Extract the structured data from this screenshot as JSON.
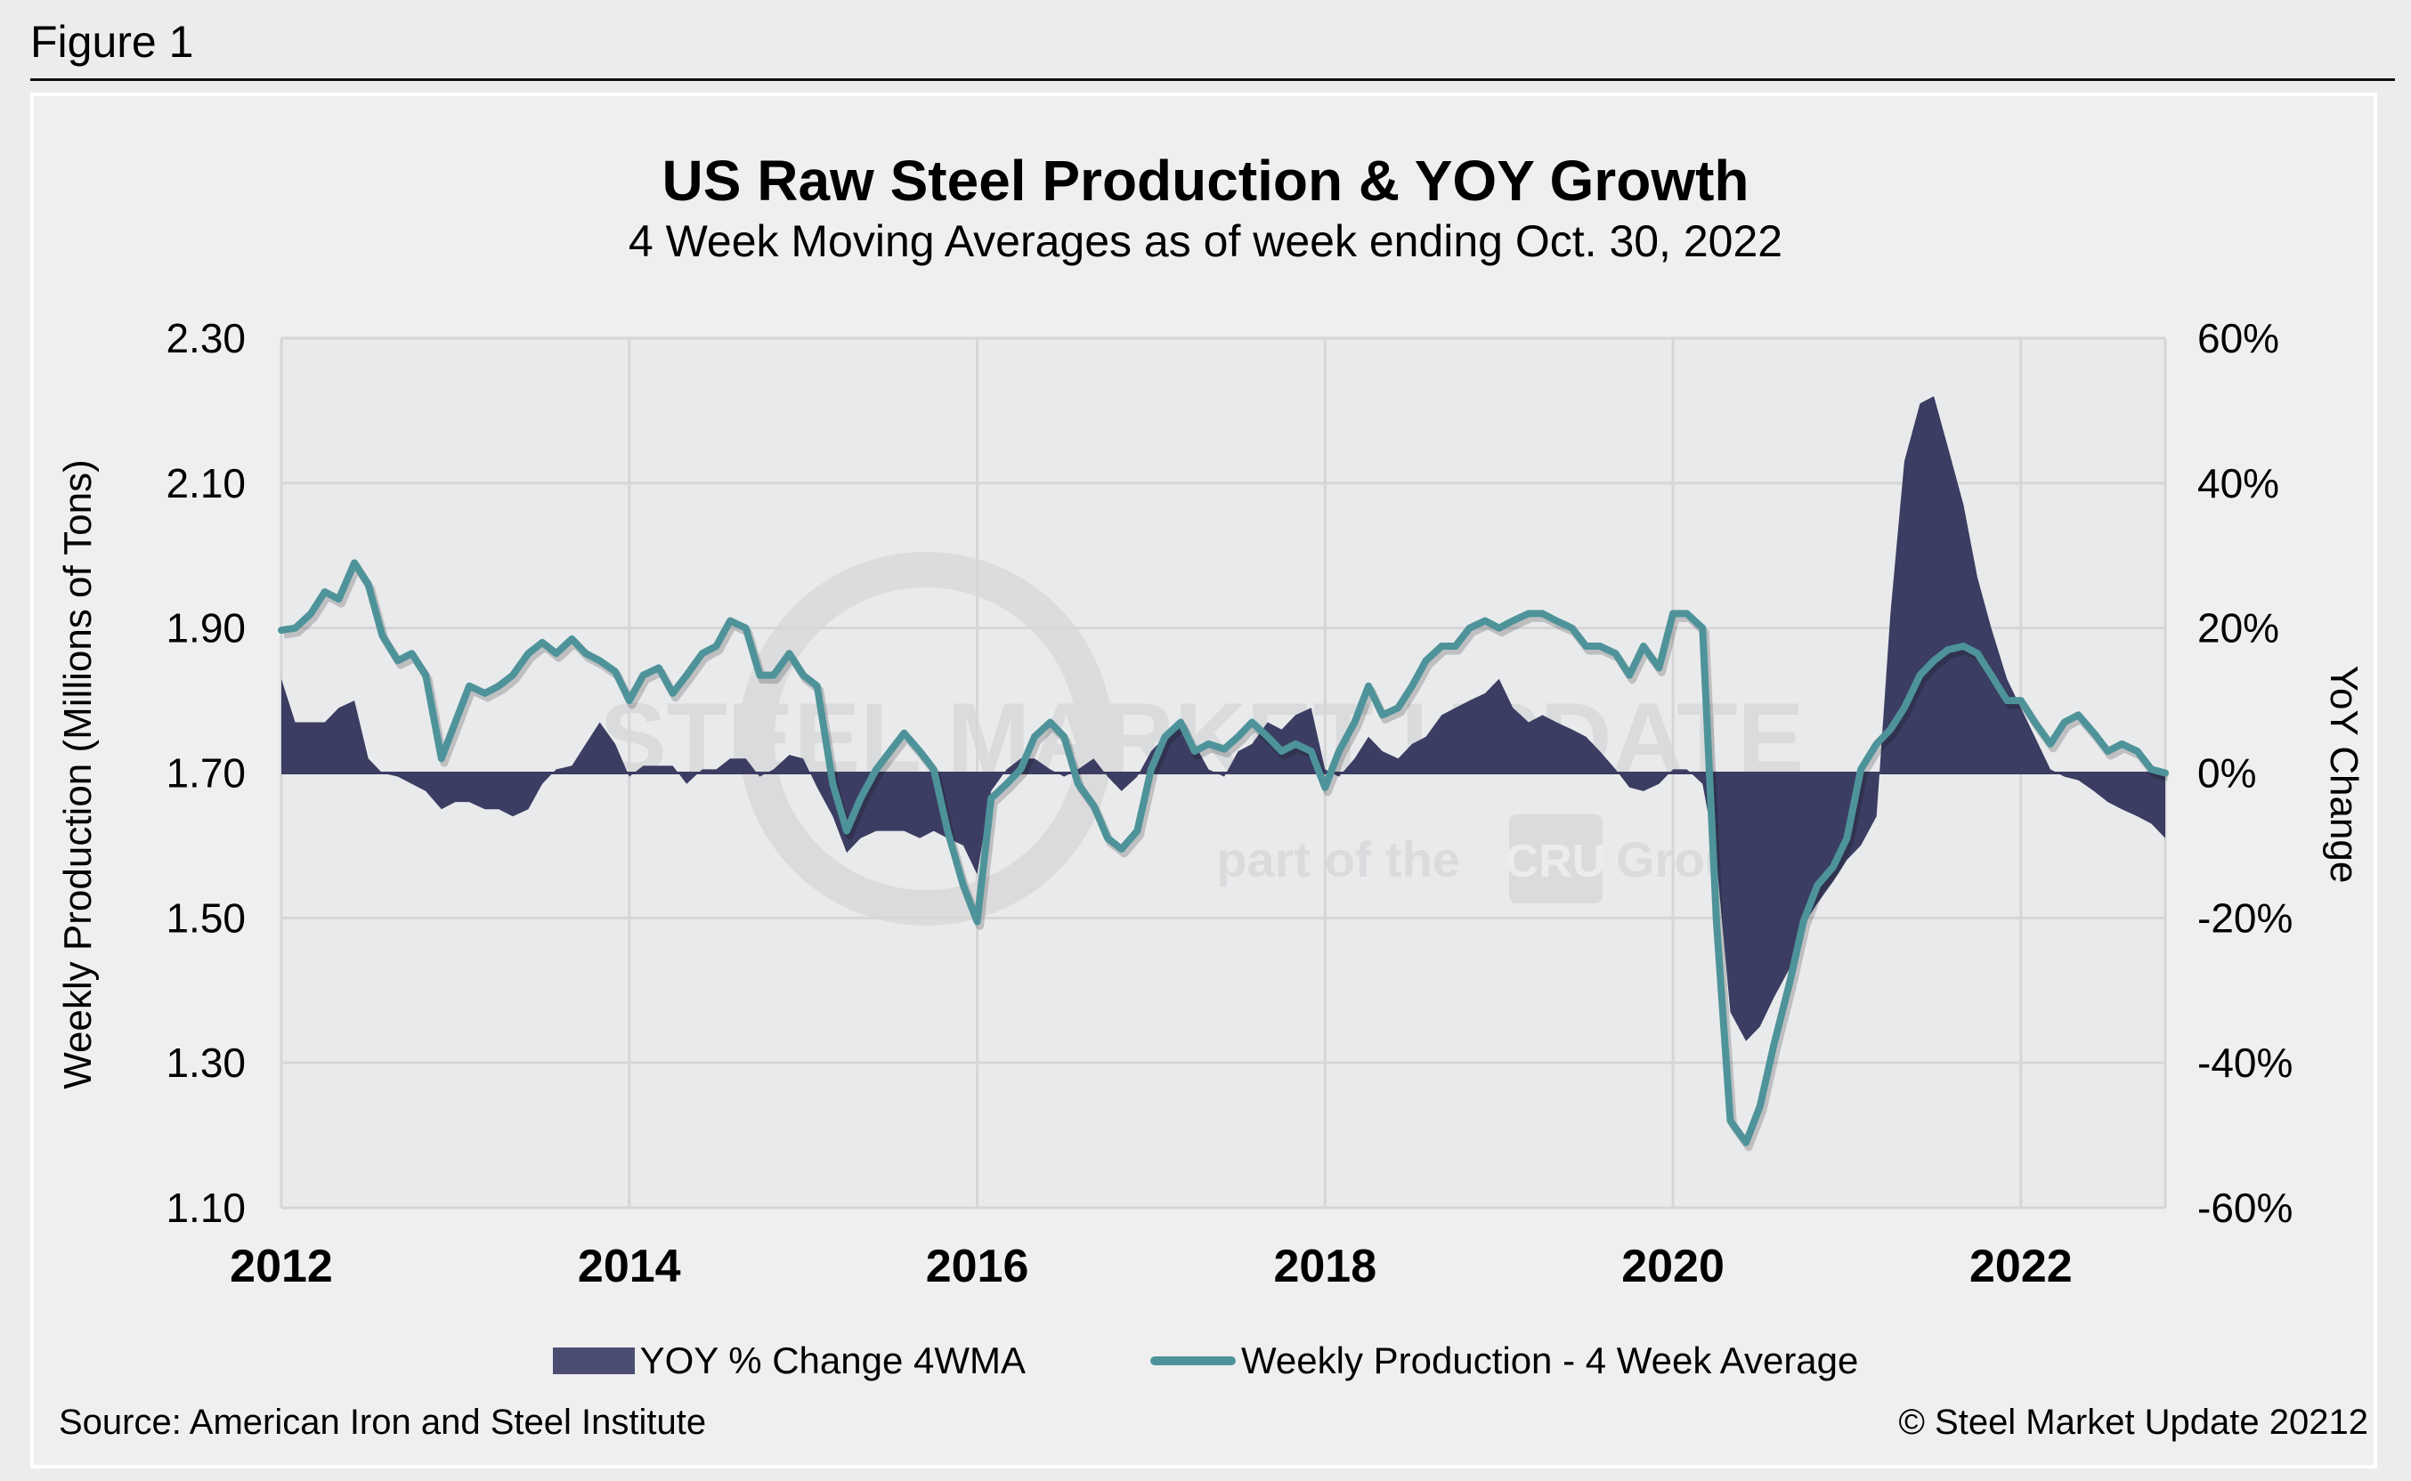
{
  "figure_label": "Figure 1",
  "watermark": {
    "brand": "STEEL MARKET UPDATE",
    "tagline_pre": "part of the",
    "tagline_logo": "CRU",
    "tagline_post": "Group"
  },
  "footer": {
    "source": "Source: American Iron and Steel Institute",
    "copyright": "© Steel Market Update 20212"
  },
  "colors": {
    "area": "#3b3d62",
    "line": "#4e939a",
    "plot_bg": "#e9eaec",
    "grid": "#d6d6d8"
  },
  "chart_data": {
    "type": "line+area",
    "title": "US Raw Steel Production & YOY Growth",
    "subtitle": "4 Week Moving Averages as of week ending Oct. 30, 2022",
    "ylabel": "Weekly Production (Millions of Tons)",
    "y2label": "YoY Change",
    "xlim": [
      2012,
      2022.83
    ],
    "ylim": [
      1.1,
      2.3
    ],
    "y2lim": [
      -60,
      60
    ],
    "grid": true,
    "legend_position": "bottom",
    "x_ticks": [
      "2012",
      "2014",
      "2016",
      "2018",
      "2020",
      "2022"
    ],
    "y_ticks": [
      "2.30",
      "2.10",
      "1.90",
      "1.70",
      "1.50",
      "1.30",
      "1.10"
    ],
    "y2_ticks": [
      "60%",
      "40%",
      "20%",
      "0%",
      "-20%",
      "-40%",
      "-60%"
    ],
    "x": [
      2012.0,
      2012.08,
      2012.17,
      2012.25,
      2012.33,
      2012.42,
      2012.5,
      2012.58,
      2012.67,
      2012.75,
      2012.83,
      2012.92,
      2013.0,
      2013.08,
      2013.17,
      2013.25,
      2013.33,
      2013.42,
      2013.5,
      2013.58,
      2013.67,
      2013.75,
      2013.83,
      2013.92,
      2014.0,
      2014.08,
      2014.17,
      2014.25,
      2014.33,
      2014.42,
      2014.5,
      2014.58,
      2014.67,
      2014.75,
      2014.83,
      2014.92,
      2015.0,
      2015.08,
      2015.17,
      2015.25,
      2015.33,
      2015.42,
      2015.5,
      2015.58,
      2015.67,
      2015.75,
      2015.83,
      2015.92,
      2016.0,
      2016.08,
      2016.17,
      2016.25,
      2016.33,
      2016.42,
      2016.5,
      2016.58,
      2016.67,
      2016.75,
      2016.83,
      2016.92,
      2017.0,
      2017.08,
      2017.17,
      2017.25,
      2017.33,
      2017.42,
      2017.5,
      2017.58,
      2017.67,
      2017.75,
      2017.83,
      2017.92,
      2018.0,
      2018.08,
      2018.17,
      2018.25,
      2018.33,
      2018.42,
      2018.5,
      2018.58,
      2018.67,
      2018.75,
      2018.83,
      2018.92,
      2019.0,
      2019.08,
      2019.17,
      2019.25,
      2019.33,
      2019.42,
      2019.5,
      2019.58,
      2019.67,
      2019.75,
      2019.83,
      2019.92,
      2020.0,
      2020.08,
      2020.17,
      2020.25,
      2020.33,
      2020.42,
      2020.5,
      2020.58,
      2020.67,
      2020.75,
      2020.83,
      2020.92,
      2021.0,
      2021.08,
      2021.17,
      2021.25,
      2021.33,
      2021.42,
      2021.5,
      2021.58,
      2021.67,
      2021.75,
      2021.83,
      2021.92,
      2022.0,
      2022.08,
      2022.17,
      2022.25,
      2022.33,
      2022.42,
      2022.5,
      2022.58,
      2022.67,
      2022.75,
      2022.83
    ],
    "series": [
      {
        "name": "YOY % Change 4WMA",
        "type": "area",
        "axis": "right",
        "values": [
          13,
          7,
          7,
          7,
          9,
          10,
          2,
          0,
          -0.5,
          -1.5,
          -2.5,
          -5,
          -4,
          -4,
          -5,
          -5,
          -6,
          -5,
          -1.5,
          0.5,
          1,
          4,
          7,
          4,
          -0.5,
          1,
          1,
          1,
          -1.5,
          0.5,
          0.5,
          2,
          2,
          -0.5,
          0.5,
          2.5,
          2,
          -2,
          -6,
          -11,
          -9,
          -8,
          -8,
          -8,
          -9,
          -8,
          -9,
          -10,
          -14,
          -2.5,
          0.5,
          2,
          2,
          0.5,
          -0.5,
          0.5,
          2,
          -0.5,
          -2.5,
          -0.5,
          3,
          5,
          7,
          4,
          0.5,
          -0.5,
          3,
          4,
          7,
          6,
          8,
          9,
          0.5,
          -0.5,
          2,
          5,
          3,
          2,
          4,
          5,
          8,
          9,
          10,
          11,
          13,
          9,
          7,
          8,
          7,
          6,
          5,
          3,
          0.5,
          -2,
          -2.5,
          -1.5,
          0.5,
          0.5,
          -1.5,
          -12,
          -33,
          -37,
          -35,
          -31,
          -27,
          -21,
          -18,
          -15,
          -12,
          -10,
          -6,
          22,
          43,
          51,
          52,
          45,
          37,
          27,
          20,
          13,
          9,
          5,
          0.5,
          -0.5,
          -1,
          -2.5,
          -4,
          -5,
          -6,
          -7,
          -9
        ]
      },
      {
        "name": "Weekly Production - 4 Week Average",
        "type": "line",
        "axis": "left",
        "values": [
          1.897,
          1.9,
          1.92,
          1.95,
          1.94,
          1.99,
          1.96,
          1.89,
          1.855,
          1.865,
          1.835,
          1.72,
          1.77,
          1.82,
          1.81,
          1.82,
          1.835,
          1.865,
          1.88,
          1.865,
          1.885,
          1.865,
          1.855,
          1.84,
          1.8,
          1.835,
          1.845,
          1.81,
          1.835,
          1.865,
          1.875,
          1.91,
          1.9,
          1.835,
          1.835,
          1.865,
          1.835,
          1.82,
          1.685,
          1.62,
          1.665,
          1.705,
          1.73,
          1.755,
          1.73,
          1.705,
          1.62,
          1.545,
          1.495,
          1.665,
          1.685,
          1.705,
          1.75,
          1.77,
          1.75,
          1.685,
          1.655,
          1.61,
          1.595,
          1.62,
          1.705,
          1.75,
          1.77,
          1.73,
          1.74,
          1.733,
          1.75,
          1.77,
          1.75,
          1.73,
          1.74,
          1.73,
          1.68,
          1.73,
          1.77,
          1.82,
          1.78,
          1.79,
          1.82,
          1.855,
          1.875,
          1.875,
          1.9,
          1.91,
          1.9,
          1.91,
          1.92,
          1.92,
          1.91,
          1.9,
          1.875,
          1.875,
          1.865,
          1.835,
          1.875,
          1.845,
          1.92,
          1.92,
          1.9,
          1.495,
          1.22,
          1.19,
          1.24,
          1.325,
          1.41,
          1.495,
          1.545,
          1.57,
          1.61,
          1.705,
          1.74,
          1.76,
          1.79,
          1.835,
          1.855,
          1.87,
          1.875,
          1.865,
          1.835,
          1.8,
          1.8,
          1.77,
          1.74,
          1.77,
          1.78,
          1.755,
          1.73,
          1.74,
          1.73,
          1.705,
          1.7
        ]
      }
    ]
  }
}
